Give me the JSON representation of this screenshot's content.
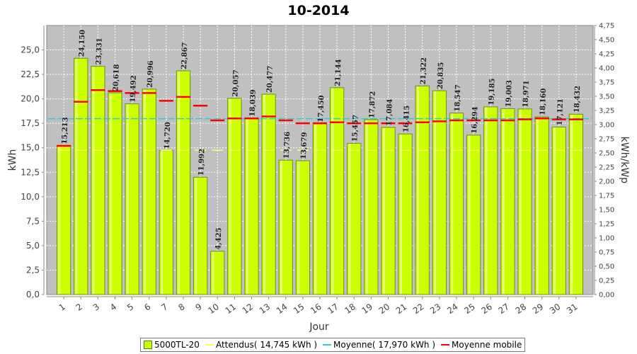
{
  "chart_data": {
    "type": "bar",
    "title": "10-2014",
    "xlabel": "Jour",
    "ylabel": "kWh",
    "ylabel_right": "kWh/kWp",
    "categories": [
      "1",
      "2",
      "3",
      "4",
      "5",
      "6",
      "7",
      "8",
      "9",
      "10",
      "11",
      "12",
      "13",
      "14",
      "15",
      "16",
      "17",
      "18",
      "19",
      "20",
      "21",
      "22",
      "23",
      "24",
      "25",
      "26",
      "27",
      "28",
      "29",
      "30",
      "31"
    ],
    "ylim": [
      0,
      27.5
    ],
    "yticks": [
      "0,0",
      "2,5",
      "5,0",
      "7,5",
      "10,0",
      "12,5",
      "15,0",
      "17,5",
      "20,0",
      "22,5",
      "25,0"
    ],
    "ylim_right": [
      0,
      4.75
    ],
    "yticks_right": [
      "0,00",
      "0,25",
      "0,50",
      "0,75",
      "1,00",
      "1,25",
      "1,50",
      "1,75",
      "2,00",
      "2,25",
      "2,50",
      "2,75",
      "3,00",
      "3,25",
      "3,50",
      "3,75",
      "4,00",
      "4,25",
      "4,50",
      "4,75"
    ],
    "grid": true,
    "legend_position": "bottom",
    "series": [
      {
        "name": "5000TL-20",
        "kind": "bar",
        "color": "#ccff00",
        "values": [
          15.213,
          24.15,
          23.331,
          20.618,
          19.492,
          20.996,
          14.72,
          22.867,
          11.992,
          4.425,
          20.057,
          18.039,
          20.477,
          13.736,
          13.679,
          17.45,
          21.144,
          15.457,
          17.872,
          17.084,
          16.415,
          21.322,
          20.835,
          18.547,
          16.294,
          19.185,
          19.003,
          18.971,
          18.16,
          17.121,
          18.432
        ],
        "labels": [
          "15,213",
          "24,150",
          "23,331",
          "20,618",
          "19,492",
          "20,996",
          "14,720",
          "22,867",
          "11,992",
          "4,425",
          "20,057",
          "18,039",
          "20,477",
          "13,736",
          "13,679",
          "17,450",
          "21,144",
          "15,457",
          "17,872",
          "17,084",
          "16,415",
          "21,322",
          "20,835",
          "18,547",
          "16,294",
          "19,185",
          "19,003",
          "18,971",
          "18,160",
          "17,121",
          "18,432"
        ]
      },
      {
        "name": "Attendus( 14,745 kWh )",
        "kind": "step",
        "color": "#ffff66",
        "values": [
          14.745,
          14.745,
          14.745,
          14.745,
          14.745,
          14.745,
          14.745,
          14.745,
          14.745,
          14.745,
          14.745,
          14.745,
          14.745,
          14.745,
          14.745,
          14.745,
          14.745,
          14.745,
          14.745,
          14.745,
          14.745,
          14.745,
          14.745,
          14.745,
          14.745,
          14.745,
          14.745,
          14.745,
          14.745,
          14.745,
          14.745
        ]
      },
      {
        "name": "Moyenne( 17,970 kWh )",
        "kind": "line",
        "color": "#33cccc",
        "values": [
          17.97,
          17.97,
          17.97,
          17.97,
          17.97,
          17.97,
          17.97,
          17.97,
          17.97,
          17.97,
          17.97,
          17.97,
          17.97,
          17.97,
          17.97,
          17.97,
          17.97,
          17.97,
          17.97,
          17.97,
          17.97,
          17.97,
          17.97,
          17.97,
          17.97,
          17.97,
          17.97,
          17.97,
          17.97,
          17.97,
          17.97
        ]
      },
      {
        "name": "Moyenne mobile",
        "kind": "step",
        "color": "#ff0000",
        "values": [
          15.2,
          19.7,
          20.9,
          20.8,
          20.6,
          20.6,
          19.8,
          20.2,
          19.3,
          17.8,
          18.0,
          18.0,
          18.2,
          17.8,
          17.5,
          17.5,
          17.6,
          17.5,
          17.5,
          17.5,
          17.5,
          17.6,
          17.7,
          17.8,
          17.8,
          17.8,
          17.8,
          17.9,
          18.0,
          17.9,
          17.9
        ]
      }
    ]
  }
}
